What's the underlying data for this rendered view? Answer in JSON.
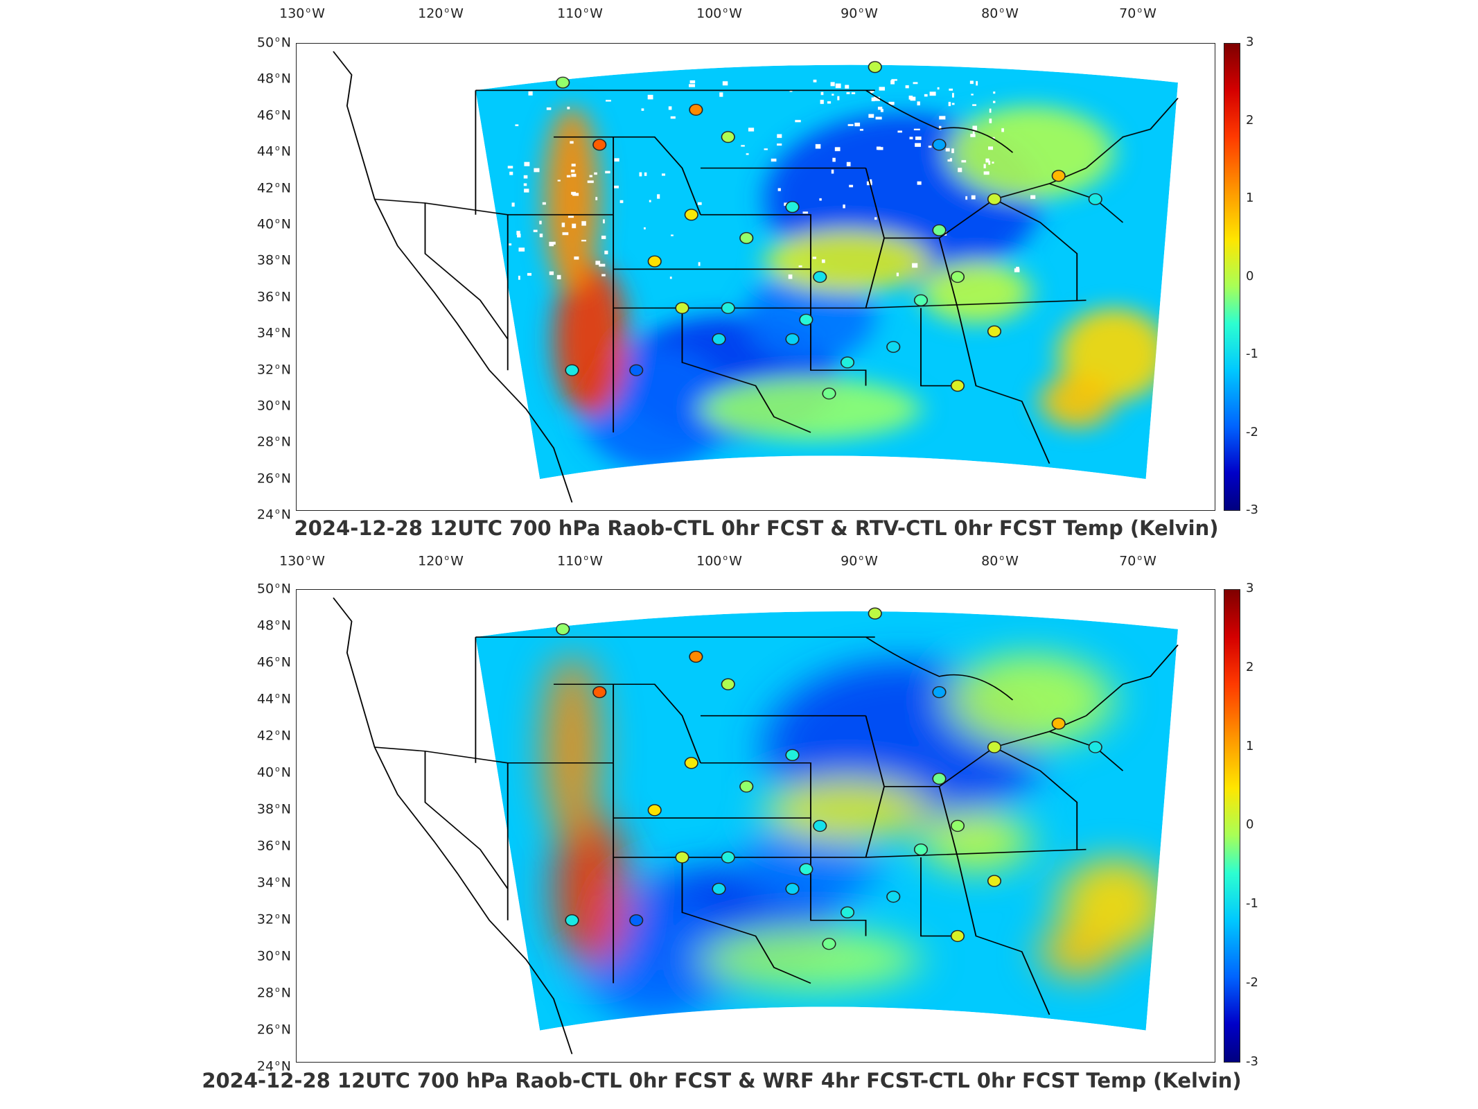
{
  "panels": [
    {
      "title": "2024-12-28 12UTC 700 hPa Raob-CTL 0hr FCST & RTV-CTL 0hr FCST Temp (Kelvin)",
      "style": "speckled"
    },
    {
      "title": "2024-12-28 12UTC 700 hPa Raob-CTL 0hr FCST & WRF 4hr FCST-CTL 0hr FCST Temp (Kelvin)",
      "style": "smooth"
    }
  ],
  "longitude_labels": [
    "130",
    "120",
    "110",
    "100",
    "90",
    "80",
    "70"
  ],
  "longitude_suffix": "W",
  "latitude_labels": [
    "50",
    "48",
    "46",
    "44",
    "42",
    "40",
    "38",
    "36",
    "34",
    "32",
    "30",
    "28",
    "26",
    "24"
  ],
  "latitude_suffix": "N",
  "colorbar": {
    "ticks": [
      "3",
      "2",
      "1",
      "0",
      "-1",
      "-2",
      "-3"
    ],
    "range": [
      -3,
      3
    ],
    "colors": [
      "#7f0000",
      "#ff3a00",
      "#ffe600",
      "#2dffd0",
      "#0064ff",
      "#00007f"
    ]
  }
}
